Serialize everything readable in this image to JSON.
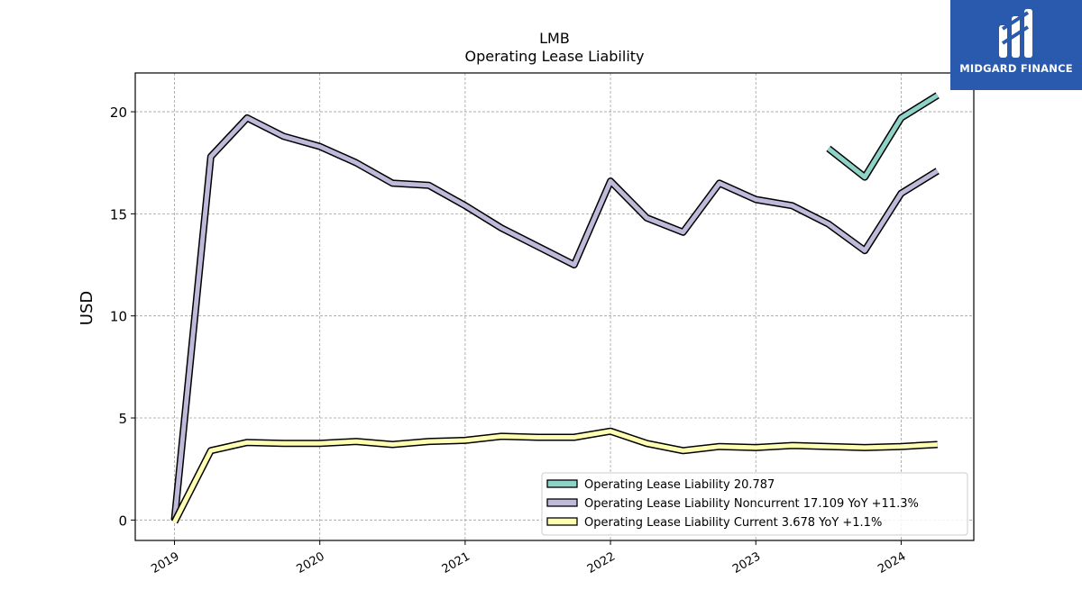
{
  "chart_data": {
    "type": "line",
    "title": "LMB",
    "subtitle": "Operating Lease Liability",
    "ylabel": "USD",
    "xlabel": "",
    "ylim": [
      -1,
      21.9
    ],
    "xlim": [
      2018.73,
      2024.5
    ],
    "yticks": [
      0,
      5,
      10,
      15,
      20
    ],
    "xticks": [
      2019,
      2020,
      2021,
      2022,
      2023,
      2024
    ],
    "grid": true,
    "legend_position": "lower-right",
    "series": [
      {
        "name": "Operating Lease Liability",
        "legend_label": "Operating Lease Liability  20.787",
        "color": "#8dd3c7",
        "x": [
          2023.5,
          2023.75,
          2024.0,
          2024.25
        ],
        "y": [
          18.2,
          16.8,
          19.7,
          20.8
        ]
      },
      {
        "name": "Operating Lease Liability Noncurrent",
        "legend_label": "Operating Lease Liability Noncurrent  17.109 YoY +11.3%",
        "color": "#bebada",
        "x": [
          2019.0,
          2019.25,
          2019.5,
          2019.75,
          2020.0,
          2020.25,
          2020.5,
          2020.75,
          2021.0,
          2021.25,
          2021.5,
          2021.75,
          2022.0,
          2022.25,
          2022.5,
          2022.75,
          2023.0,
          2023.25,
          2023.5,
          2023.75,
          2024.0,
          2024.25
        ],
        "y": [
          0.0,
          17.8,
          19.7,
          18.8,
          18.3,
          17.5,
          16.5,
          16.4,
          15.4,
          14.3,
          13.4,
          12.5,
          16.6,
          14.8,
          14.1,
          16.5,
          15.7,
          15.4,
          14.5,
          13.2,
          16.0,
          17.1
        ]
      },
      {
        "name": "Operating Lease Liability Current",
        "legend_label": "Operating Lease Liability Current  3.678 YoY +1.1%",
        "color": "#ffffb3",
        "x": [
          2019.0,
          2019.25,
          2019.5,
          2019.75,
          2020.0,
          2020.25,
          2020.5,
          2020.75,
          2021.0,
          2021.25,
          2021.5,
          2021.75,
          2022.0,
          2022.25,
          2022.5,
          2022.75,
          2023.0,
          2023.25,
          2023.5,
          2023.75,
          2024.0,
          2024.25
        ],
        "y": [
          -0.1,
          3.4,
          3.8,
          3.75,
          3.75,
          3.85,
          3.7,
          3.85,
          3.9,
          4.1,
          4.05,
          4.05,
          4.35,
          3.75,
          3.4,
          3.6,
          3.55,
          3.65,
          3.6,
          3.55,
          3.6,
          3.7
        ]
      }
    ]
  },
  "logo": {
    "text": "MIDGARD FINANCE",
    "background": "#2a5aad"
  }
}
